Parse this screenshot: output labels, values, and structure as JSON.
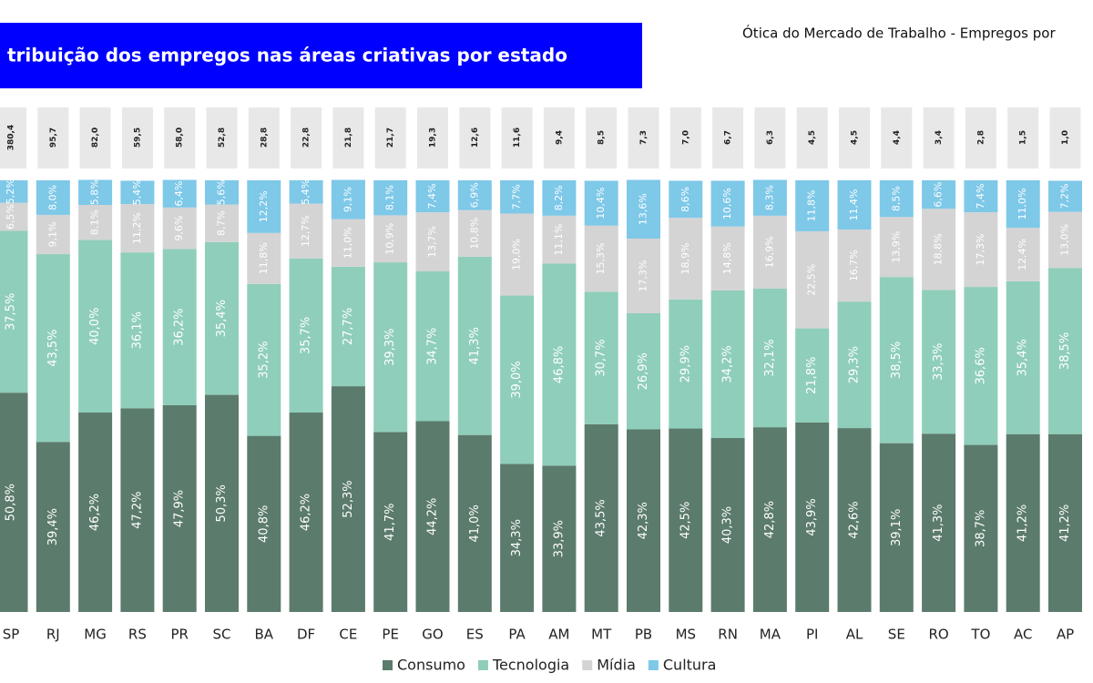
{
  "chart_data": {
    "type": "stacked-bar",
    "title": "tribuição dos empregos nas áreas criativas por estado",
    "subtitle": "Ótica do Mercado de Trabalho - Empregos por",
    "categories": [
      "SP",
      "RJ",
      "MG",
      "RS",
      "PR",
      "SC",
      "BA",
      "DF",
      "CE",
      "PE",
      "GO",
      "ES",
      "PA",
      "AM",
      "MT",
      "PB",
      "MS",
      "RN",
      "MA",
      "PI",
      "AL",
      "SE",
      "RO",
      "TO",
      "AC",
      "AP"
    ],
    "ylim": [
      0,
      100
    ],
    "totals": {
      "values": [
        380.4,
        95.7,
        82.0,
        59.5,
        58.0,
        52.8,
        28.8,
        22.8,
        21.8,
        21.7,
        19.3,
        12.6,
        11.6,
        9.4,
        8.5,
        7.3,
        7.0,
        6.7,
        6.3,
        4.5,
        4.5,
        4.4,
        3.4,
        2.8,
        1.5,
        1.0
      ],
      "value_labels": [
        "380,4",
        "95,7",
        "82,0",
        "59,5",
        "58,0",
        "52,8",
        "28,8",
        "22,8",
        "21,8",
        "21,7",
        "19,3",
        "12,6",
        "11,6",
        "9,4",
        "8,5",
        "7,3",
        "7,0",
        "6,7",
        "6,3",
        "4,5",
        "4,5",
        "4,4",
        "3,4",
        "2,8",
        "1,5",
        "1,0"
      ]
    },
    "series": [
      {
        "name": "Consumo",
        "color": "#5b7b6c",
        "values": [
          50.8,
          39.4,
          46.2,
          47.2,
          47.9,
          50.3,
          40.8,
          46.2,
          52.3,
          41.7,
          44.2,
          41.0,
          34.3,
          33.9,
          43.5,
          42.3,
          42.5,
          40.3,
          42.8,
          43.9,
          42.6,
          39.1,
          41.3,
          38.7,
          41.2,
          41.2
        ],
        "value_labels": [
          "50,8%",
          "39,4%",
          "46,2%",
          "47,2%",
          "47,9%",
          "50,3%",
          "40,8%",
          "46,2%",
          "52,3%",
          "41,7%",
          "44,2%",
          "41,0%",
          "34,3%",
          "33,9%",
          "43,5%",
          "42,3%",
          "42,5%",
          "40,3%",
          "42,8%",
          "43,9%",
          "42,6%",
          "39,1%",
          "41,3%",
          "38,7%",
          "41,2%",
          "41,2%"
        ]
      },
      {
        "name": "Tecnologia",
        "color": "#8fceba",
        "values": [
          37.5,
          43.5,
          40.0,
          36.1,
          36.2,
          35.4,
          35.2,
          35.7,
          27.7,
          39.3,
          34.7,
          41.3,
          39.0,
          46.8,
          30.7,
          26.9,
          29.9,
          34.2,
          32.1,
          21.8,
          29.3,
          38.5,
          33.3,
          36.6,
          35.4,
          38.5
        ],
        "value_labels": [
          "37,5%",
          "43,5%",
          "40,0%",
          "36,1%",
          "36,2%",
          "35,4%",
          "35,2%",
          "35,7%",
          "27,7%",
          "39,3%",
          "34,7%",
          "41,3%",
          "39,0%",
          "46,8%",
          "30,7%",
          "26,9%",
          "29,9%",
          "34,2%",
          "32,1%",
          "21,8%",
          "29,3%",
          "38,5%",
          "33,3%",
          "36,6%",
          "35,4%",
          "38,5%"
        ]
      },
      {
        "name": "Mídia",
        "color": "#d4d4d4",
        "values": [
          6.5,
          9.1,
          8.1,
          11.2,
          9.6,
          8.7,
          11.8,
          12.7,
          11.0,
          10.9,
          13.7,
          10.8,
          19.0,
          11.1,
          15.3,
          17.3,
          18.9,
          14.8,
          16.9,
          22.5,
          16.7,
          13.9,
          18.8,
          17.3,
          12.4,
          13.0
        ],
        "value_labels": [
          "6,5%",
          "9,1%",
          "8,1%",
          "11,2%",
          "9,6%",
          "8,7%",
          "11,8%",
          "12,7%",
          "11,0%",
          "10,9%",
          "13,7%",
          "10,8%",
          "19,0%",
          "11,1%",
          "15,3%",
          "17,3%",
          "18,9%",
          "14,8%",
          "16,9%",
          "22,5%",
          "16,7%",
          "13,9%",
          "18,8%",
          "17,3%",
          "12,4%",
          "13,0%"
        ]
      },
      {
        "name": "Cultura",
        "color": "#7ec8e8",
        "values": [
          5.2,
          8.0,
          5.8,
          5.4,
          6.4,
          5.6,
          12.2,
          5.4,
          9.1,
          8.1,
          7.4,
          6.9,
          7.7,
          8.2,
          10.4,
          13.6,
          8.6,
          10.6,
          8.3,
          11.8,
          11.4,
          8.5,
          6.6,
          7.4,
          11.0,
          7.2
        ],
        "value_labels": [
          "5,2%",
          "8,0%",
          "5,8%",
          "5,4%",
          "6,4%",
          "5,6%",
          "12,2%",
          "5,4%",
          "9,1%",
          "8,1%",
          "7,4%",
          "6,9%",
          "7,7%",
          "8,2%",
          "10,4%",
          "13,6%",
          "8,6%",
          "10,6%",
          "8,3%",
          "11,8%",
          "11,4%",
          "8,5%",
          "6,6%",
          "7,4%",
          "11,0%",
          "7,2%"
        ]
      }
    ]
  }
}
